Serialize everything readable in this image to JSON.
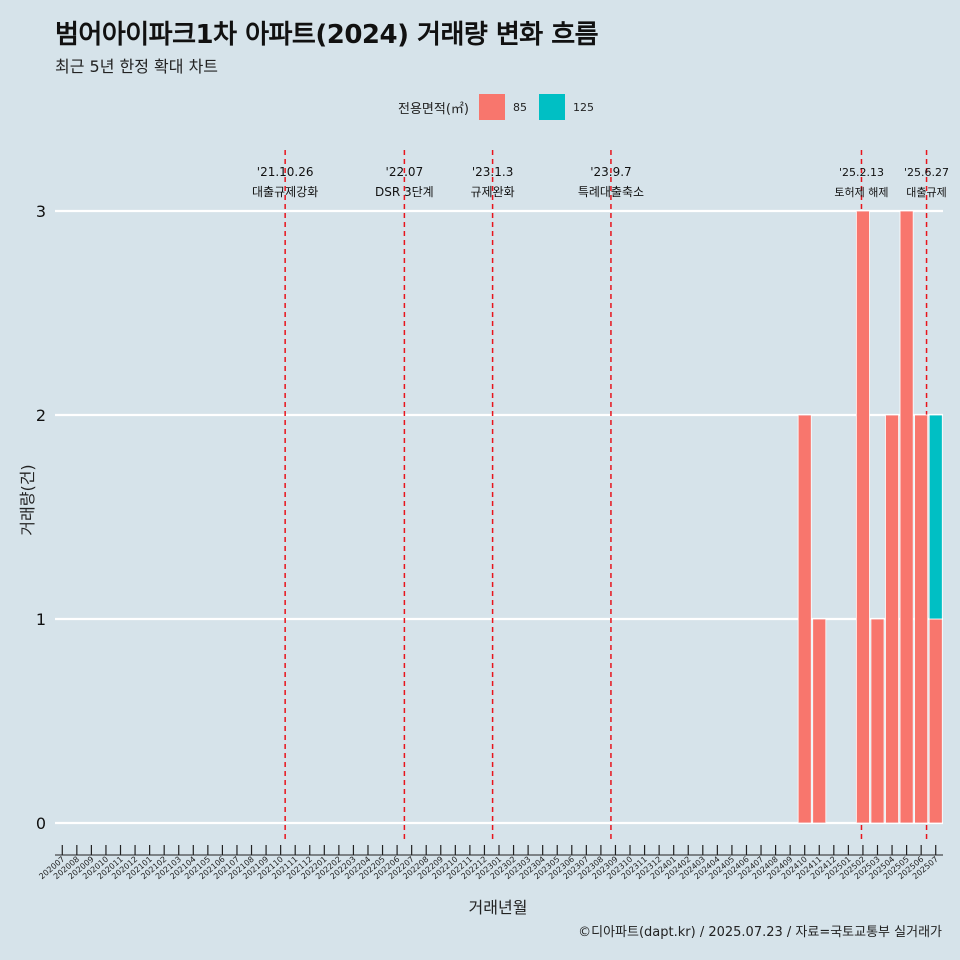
{
  "title": "범어아이파크1차 아파트(2024) 거래량 변화 흐름",
  "subtitle": "최근 5년 한정 확대 차트",
  "legend": {
    "title": "전용면적(㎡)",
    "items": [
      {
        "label": "85",
        "color": "#f8766d"
      },
      {
        "label": "125",
        "color": "#00bfc4"
      }
    ]
  },
  "caption": "©디아파트(dapt.kr) / 2025.07.23 / 자료=국토교통부 실거래가",
  "chart_data": {
    "type": "bar",
    "stacked": true,
    "xlabel": "거래년월",
    "ylabel": "거래량(건)",
    "ylim": [
      0,
      3
    ],
    "yticks": [
      0,
      1,
      2,
      3
    ],
    "grid": "horizontal major lines",
    "legend_position": "top",
    "categories": [
      "202007",
      "202008",
      "202009",
      "202010",
      "202011",
      "202012",
      "202101",
      "202102",
      "202103",
      "202104",
      "202105",
      "202106",
      "202107",
      "202108",
      "202109",
      "202110",
      "202111",
      "202112",
      "202201",
      "202202",
      "202203",
      "202204",
      "202205",
      "202206",
      "202207",
      "202208",
      "202209",
      "202210",
      "202211",
      "202212",
      "202301",
      "202302",
      "202303",
      "202304",
      "202305",
      "202306",
      "202307",
      "202308",
      "202309",
      "202310",
      "202311",
      "202312",
      "202401",
      "202402",
      "202403",
      "202404",
      "202405",
      "202406",
      "202407",
      "202408",
      "202409",
      "202410",
      "202411",
      "202412",
      "202501",
      "202502",
      "202503",
      "202504",
      "202505",
      "202506",
      "202507"
    ],
    "series": [
      {
        "name": "85",
        "color": "#f8766d",
        "values": [
          0,
          0,
          0,
          0,
          0,
          0,
          0,
          0,
          0,
          0,
          0,
          0,
          0,
          0,
          0,
          0,
          0,
          0,
          0,
          0,
          0,
          0,
          0,
          0,
          0,
          0,
          0,
          0,
          0,
          0,
          0,
          0,
          0,
          0,
          0,
          0,
          0,
          0,
          0,
          0,
          0,
          0,
          0,
          0,
          0,
          0,
          0,
          0,
          0,
          0,
          0,
          2,
          1,
          0,
          0,
          3,
          1,
          2,
          3,
          2,
          1
        ]
      },
      {
        "name": "125",
        "color": "#00bfc4",
        "values": [
          0,
          0,
          0,
          0,
          0,
          0,
          0,
          0,
          0,
          0,
          0,
          0,
          0,
          0,
          0,
          0,
          0,
          0,
          0,
          0,
          0,
          0,
          0,
          0,
          0,
          0,
          0,
          0,
          0,
          0,
          0,
          0,
          0,
          0,
          0,
          0,
          0,
          0,
          0,
          0,
          0,
          0,
          0,
          0,
          0,
          0,
          0,
          0,
          0,
          0,
          0,
          0,
          0,
          0,
          0,
          0,
          0,
          0,
          0,
          0,
          1
        ]
      }
    ],
    "events": [
      {
        "date": "'21.10.26",
        "label": "대출규제강화",
        "category": "202110",
        "offset": 0.81
      },
      {
        "date": "'22.07",
        "label": "DSR 3단계",
        "category": "202207",
        "offset": 0
      },
      {
        "date": "'23.1.3",
        "label": "규제완화",
        "category": "202301",
        "offset": 0.06
      },
      {
        "date": "'23.9.7",
        "label": "특례대출축소",
        "category": "202309",
        "offset": 0.19
      },
      {
        "date": "'25.2.13",
        "label": "토허제 해제",
        "category": "202502",
        "offset": 0.4
      },
      {
        "date": "'25.6.27",
        "label": "대출규제",
        "category": "202506",
        "offset": 0.87
      }
    ]
  }
}
